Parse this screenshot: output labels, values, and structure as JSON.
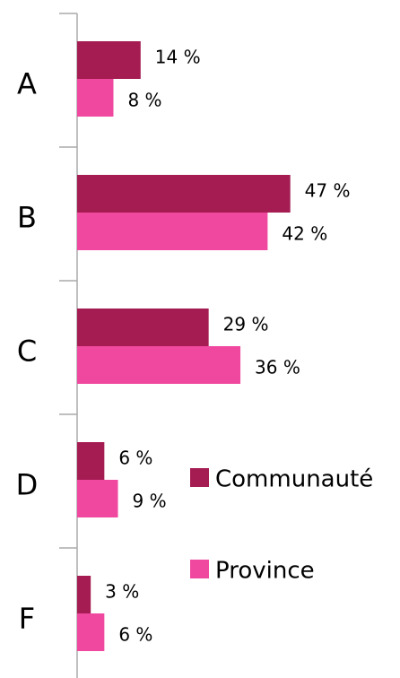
{
  "chart_data": {
    "type": "hbar",
    "categories": [
      "A",
      "B",
      "C",
      "D",
      "F"
    ],
    "series": [
      {
        "name": "Communauté",
        "color": "#a51c52",
        "values": [
          14,
          47,
          29,
          6,
          3
        ],
        "value_labels": [
          "14 %",
          "47 %",
          "29 %",
          "6 %",
          "3 %"
        ]
      },
      {
        "name": "Province",
        "color": "#f0479f",
        "values": [
          8,
          42,
          36,
          9,
          6
        ],
        "value_labels": [
          "8 %",
          "42 %",
          "36 %",
          "9 %",
          "6 %"
        ]
      }
    ],
    "xlim": [
      0,
      70
    ]
  }
}
